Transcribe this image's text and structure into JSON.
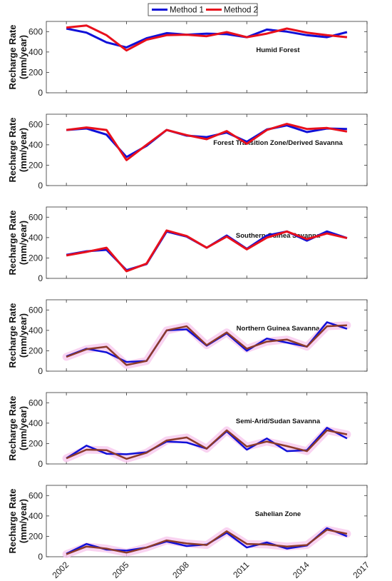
{
  "legend": {
    "position": "top-center",
    "entries": [
      "Method 1",
      "Method 2"
    ]
  },
  "colors": {
    "method1": "#1010d8",
    "method2": "#e8101c",
    "overlap": "#8b3a2a",
    "halo": "#f7c8ee",
    "axis": "#333333"
  },
  "chart_data": {
    "type": "line",
    "ylabel": "Recharge Rate\n(mm/year)",
    "xlim": [
      2001,
      2017
    ],
    "x_ticks": [
      2002,
      2005,
      2008,
      2011,
      2014,
      2017
    ],
    "x": [
      2002,
      2003,
      2004,
      2005,
      2006,
      2007,
      2008,
      2009,
      2010,
      2011,
      2012,
      2013,
      2014,
      2015,
      2016
    ],
    "panels": [
      {
        "title": "Humid Forest",
        "ylim": [
          0,
          700
        ],
        "y_ticks": [
          0,
          200,
          400,
          600
        ],
        "series": [
          {
            "name": "Method 1",
            "values": [
              630,
              590,
              495,
              445,
              535,
              585,
              570,
              580,
              575,
              545,
              620,
              600,
              565,
              545,
              595
            ]
          },
          {
            "name": "Method 2",
            "values": [
              640,
              660,
              565,
              415,
              520,
              565,
              570,
              555,
              595,
              545,
              580,
              630,
              590,
              565,
              545
            ]
          }
        ]
      },
      {
        "title": "Forest Transition Zone/Derived Savanna",
        "ylim": [
          0,
          700
        ],
        "y_ticks": [
          0,
          200,
          400,
          600
        ],
        "series": [
          {
            "name": "Method 1",
            "values": [
              545,
              560,
              500,
              280,
              390,
              545,
              490,
              475,
              520,
              430,
              550,
              590,
              525,
              560,
              555
            ]
          },
          {
            "name": "Method 2",
            "values": [
              545,
              570,
              545,
              250,
              400,
              545,
              495,
              455,
              535,
              410,
              545,
              605,
              555,
              565,
              530
            ]
          }
        ]
      },
      {
        "title": "Southern Guinea Savanna",
        "ylim": [
          0,
          700
        ],
        "y_ticks": [
          0,
          200,
          400,
          600
        ],
        "series": [
          {
            "name": "Method 1",
            "values": [
              230,
              265,
              280,
              80,
              140,
              460,
              410,
              300,
              420,
              290,
              420,
              460,
              370,
              460,
              395
            ]
          },
          {
            "name": "Method 2",
            "values": [
              225,
              260,
              300,
              70,
              145,
              470,
              415,
              300,
              410,
              285,
              400,
              460,
              385,
              440,
              395
            ]
          }
        ]
      },
      {
        "title": "Northern Guinea Savanna",
        "ylim": [
          0,
          700
        ],
        "y_ticks": [
          0,
          200,
          400,
          600
        ],
        "series": [
          {
            "name": "Method 1",
            "values": [
              145,
              220,
              185,
              90,
              100,
              400,
              410,
              250,
              370,
              200,
              320,
              280,
              240,
              480,
              415
            ]
          },
          {
            "name": "Method 2",
            "values": [
              140,
              215,
              240,
              60,
              100,
              400,
              440,
              255,
              380,
              220,
              290,
              310,
              240,
              440,
              450
            ]
          }
        ]
      },
      {
        "title": "Semi-Arid/Sudan Savanna",
        "ylim": [
          0,
          700
        ],
        "y_ticks": [
          0,
          200,
          400,
          600
        ],
        "series": [
          {
            "name": "Method 1",
            "values": [
              55,
              180,
              100,
              95,
              115,
              220,
              210,
              150,
              320,
              140,
              250,
              125,
              135,
              355,
              250
            ]
          },
          {
            "name": "Method 2",
            "values": [
              55,
              140,
              135,
              50,
              110,
              230,
              260,
              150,
              330,
              170,
              220,
              175,
              125,
              330,
              290
            ]
          }
        ]
      },
      {
        "title": "Sahelian Zone",
        "ylim": [
          0,
          700
        ],
        "y_ticks": [
          0,
          200,
          400,
          600
        ],
        "series": [
          {
            "name": "Method 1",
            "values": [
              30,
              125,
              70,
              60,
              90,
              150,
              105,
              120,
              235,
              90,
              140,
              80,
              110,
              280,
              200
            ]
          },
          {
            "name": "Method 2",
            "values": [
              25,
              100,
              80,
              40,
              90,
              160,
              130,
              115,
              250,
              125,
              120,
              100,
              115,
              265,
              225
            ]
          }
        ]
      }
    ]
  }
}
